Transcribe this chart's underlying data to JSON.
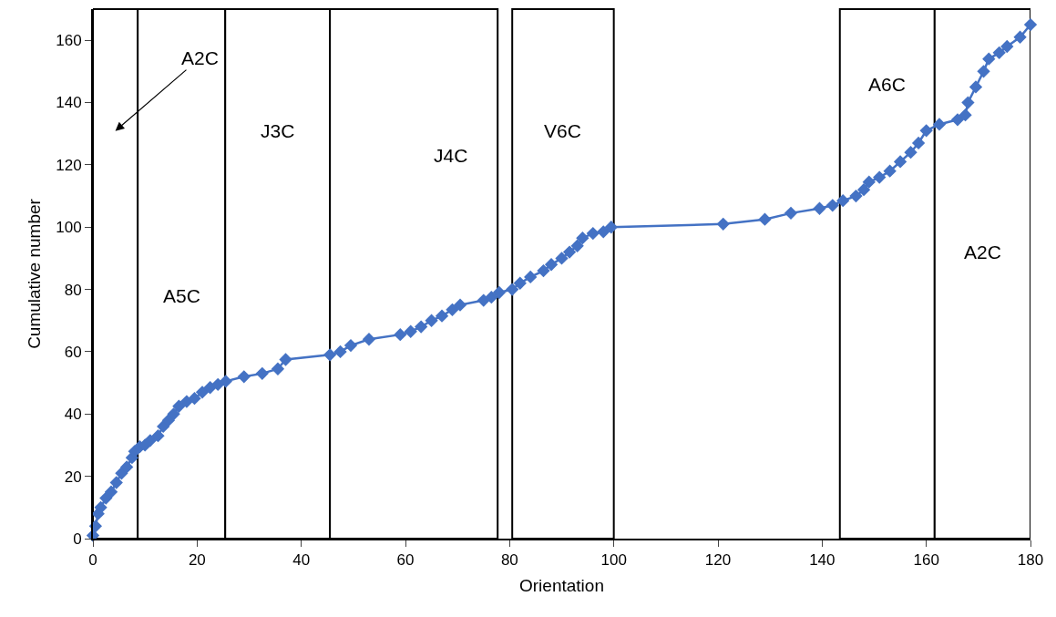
{
  "chart_data": {
    "type": "line",
    "xlabel": "Orientation",
    "ylabel": "Cumulative number",
    "marker": "diamond",
    "line_style": "solid",
    "grid": false,
    "xlim": [
      0,
      180
    ],
    "ylim": [
      0,
      170
    ],
    "xticks": [
      0,
      20,
      40,
      60,
      80,
      100,
      120,
      140,
      160,
      180
    ],
    "yticks": [
      0,
      20,
      40,
      60,
      80,
      100,
      120,
      140,
      160
    ],
    "x": [
      0,
      0.5,
      1,
      1.5,
      2.5,
      3.5,
      4.5,
      5.5,
      6.5,
      7.5,
      8,
      9,
      10,
      11,
      12.5,
      13.5,
      14.5,
      15.5,
      16.5,
      18,
      19.5,
      21,
      22.5,
      24,
      25.5,
      29,
      32.5,
      35.5,
      37,
      45.5,
      47.5,
      49.5,
      53,
      59,
      61,
      63,
      65,
      67,
      69,
      70.5,
      75,
      76.5,
      78,
      80.5,
      82,
      84,
      86.5,
      88,
      90,
      91.5,
      93,
      94,
      96,
      98,
      99.5,
      121,
      129,
      134,
      139.5,
      142,
      144,
      146.5,
      148,
      149,
      151,
      153,
      155,
      157,
      158.5,
      160,
      162.5,
      166,
      167.5,
      168,
      169.5,
      171,
      172,
      174,
      175.5,
      178,
      180
    ],
    "series": [
      {
        "color": "#4472c4",
        "values": [
          1,
          4,
          8,
          10,
          13,
          15,
          18,
          21,
          23,
          26,
          28,
          29.5,
          30,
          31.5,
          33,
          36,
          38,
          40,
          42.5,
          44,
          45,
          47,
          48.5,
          49.5,
          50.5,
          52,
          53,
          54.5,
          57.5,
          59,
          60,
          62,
          64,
          65.5,
          66.5,
          68,
          70,
          71.5,
          73.5,
          75,
          76.5,
          77.5,
          79,
          80,
          82,
          84,
          86,
          88,
          90,
          92,
          94,
          96.5,
          98,
          98.5,
          100,
          101,
          102.5,
          104.5,
          106,
          107,
          108.5,
          110,
          112,
          114.5,
          116,
          118,
          121,
          124,
          127,
          131,
          133,
          134.5,
          136,
          140,
          145,
          150,
          154,
          156,
          158,
          161,
          165
        ]
      }
    ],
    "bands": [
      {
        "axis": "x",
        "from": 0,
        "to": 8.6,
        "color": "#ffffff",
        "label": "A2C"
      },
      {
        "axis": "x",
        "from": 8.6,
        "to": 25.4,
        "color": "#ffffff",
        "label": "A5C"
      },
      {
        "axis": "x",
        "from": 25.4,
        "to": 45.5,
        "color": "#ffffff",
        "label": "J3C"
      },
      {
        "axis": "x",
        "from": 45.5,
        "to": 77.7,
        "color": "#ffffff",
        "label": "J4C"
      },
      {
        "axis": "x",
        "from": 80.5,
        "to": 100,
        "color": "#ffffff",
        "label": "V6C"
      },
      {
        "axis": "x",
        "from": 143.4,
        "to": 161.6,
        "color": "#ffffff",
        "label": "A6C"
      },
      {
        "axis": "x",
        "from": 161.6,
        "to": 180,
        "color": "#ffffff",
        "label": "A2C"
      }
    ]
  }
}
